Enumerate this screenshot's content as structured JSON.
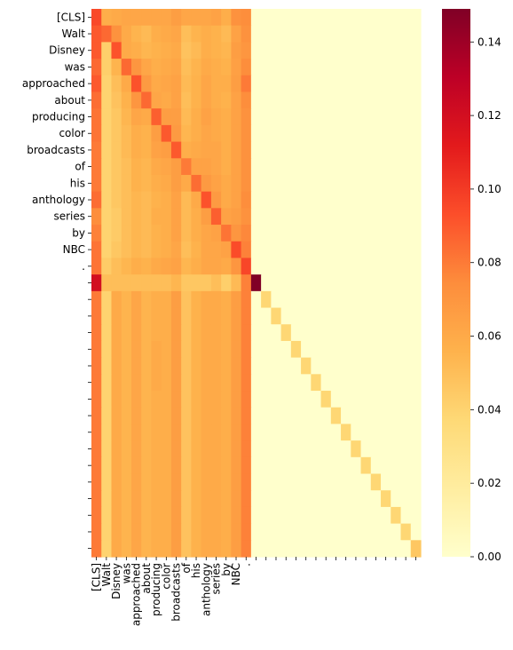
{
  "chart_data": {
    "type": "heatmap",
    "title": "",
    "xlabel": "",
    "ylabel": "",
    "row_labels": [
      "[CLS]",
      "Walt",
      "Disney",
      "was",
      "approached",
      "about",
      "producing",
      "color",
      "broadcasts",
      "of",
      "his",
      "anthology",
      "series",
      "by",
      "NBC",
      ".",
      "",
      "",
      "",
      "",
      "",
      "",
      "",
      "",
      "",
      "",
      "",
      "",
      "",
      "",
      "",
      "",
      ""
    ],
    "col_labels": [
      "[CLS]",
      "Walt",
      "Disney",
      "was",
      "approached",
      "about",
      "producing",
      "color",
      "broadcasts",
      "of",
      "his",
      "anthology",
      "series",
      "by",
      "NBC",
      ".",
      "",
      "",
      "",
      "",
      "",
      "",
      "",
      "",
      "",
      "",
      "",
      "",
      "",
      "",
      "",
      "",
      ""
    ],
    "value_range": [
      0.0,
      0.149
    ],
    "colormap": "YlOrRd",
    "colorbar_ticks": [
      "0.00",
      "0.02",
      "0.04",
      "0.06",
      "0.08",
      "0.10",
      "0.12",
      "0.14"
    ],
    "colorbar_tick_values": [
      0.0,
      0.02,
      0.04,
      0.06,
      0.08,
      0.1,
      0.12,
      0.14
    ],
    "values": [
      [
        0.095,
        0.058,
        0.06,
        0.062,
        0.062,
        0.062,
        0.062,
        0.062,
        0.066,
        0.062,
        0.062,
        0.062,
        0.064,
        0.058,
        0.072,
        0.074,
        0,
        0,
        0,
        0,
        0,
        0,
        0,
        0,
        0,
        0,
        0,
        0,
        0,
        0,
        0,
        0,
        0
      ],
      [
        0.09,
        0.085,
        0.072,
        0.06,
        0.055,
        0.052,
        0.058,
        0.06,
        0.062,
        0.05,
        0.055,
        0.058,
        0.056,
        0.052,
        0.064,
        0.072,
        0,
        0,
        0,
        0,
        0,
        0,
        0,
        0,
        0,
        0,
        0,
        0,
        0,
        0,
        0,
        0,
        0
      ],
      [
        0.09,
        0.042,
        0.092,
        0.06,
        0.058,
        0.054,
        0.056,
        0.058,
        0.06,
        0.048,
        0.052,
        0.058,
        0.056,
        0.054,
        0.066,
        0.07,
        0,
        0,
        0,
        0,
        0,
        0,
        0,
        0,
        0,
        0,
        0,
        0,
        0,
        0,
        0,
        0,
        0
      ],
      [
        0.085,
        0.042,
        0.055,
        0.085,
        0.07,
        0.062,
        0.058,
        0.06,
        0.062,
        0.05,
        0.055,
        0.06,
        0.058,
        0.056,
        0.065,
        0.074,
        0,
        0,
        0,
        0,
        0,
        0,
        0,
        0,
        0,
        0,
        0,
        0,
        0,
        0,
        0,
        0,
        0
      ],
      [
        0.09,
        0.04,
        0.05,
        0.06,
        0.092,
        0.068,
        0.06,
        0.062,
        0.064,
        0.052,
        0.056,
        0.062,
        0.058,
        0.058,
        0.066,
        0.08,
        0,
        0,
        0,
        0,
        0,
        0,
        0,
        0,
        0,
        0,
        0,
        0,
        0,
        0,
        0,
        0,
        0
      ],
      [
        0.084,
        0.04,
        0.048,
        0.056,
        0.07,
        0.085,
        0.062,
        0.06,
        0.064,
        0.05,
        0.056,
        0.062,
        0.058,
        0.056,
        0.064,
        0.074,
        0,
        0,
        0,
        0,
        0,
        0,
        0,
        0,
        0,
        0,
        0,
        0,
        0,
        0,
        0,
        0,
        0
      ],
      [
        0.082,
        0.04,
        0.046,
        0.054,
        0.062,
        0.06,
        0.088,
        0.066,
        0.066,
        0.052,
        0.058,
        0.064,
        0.06,
        0.058,
        0.064,
        0.072,
        0,
        0,
        0,
        0,
        0,
        0,
        0,
        0,
        0,
        0,
        0,
        0,
        0,
        0,
        0,
        0,
        0
      ],
      [
        0.082,
        0.04,
        0.046,
        0.052,
        0.058,
        0.056,
        0.066,
        0.09,
        0.068,
        0.054,
        0.058,
        0.062,
        0.06,
        0.058,
        0.064,
        0.072,
        0,
        0,
        0,
        0,
        0,
        0,
        0,
        0,
        0,
        0,
        0,
        0,
        0,
        0,
        0,
        0,
        0
      ],
      [
        0.08,
        0.04,
        0.046,
        0.052,
        0.058,
        0.056,
        0.064,
        0.066,
        0.09,
        0.058,
        0.06,
        0.062,
        0.062,
        0.058,
        0.064,
        0.072,
        0,
        0,
        0,
        0,
        0,
        0,
        0,
        0,
        0,
        0,
        0,
        0,
        0,
        0,
        0,
        0,
        0
      ],
      [
        0.08,
        0.04,
        0.046,
        0.05,
        0.056,
        0.054,
        0.06,
        0.062,
        0.066,
        0.08,
        0.064,
        0.064,
        0.062,
        0.058,
        0.064,
        0.072,
        0,
        0,
        0,
        0,
        0,
        0,
        0,
        0,
        0,
        0,
        0,
        0,
        0,
        0,
        0,
        0,
        0
      ],
      [
        0.08,
        0.04,
        0.046,
        0.05,
        0.056,
        0.054,
        0.058,
        0.06,
        0.066,
        0.06,
        0.084,
        0.068,
        0.064,
        0.06,
        0.064,
        0.072,
        0,
        0,
        0,
        0,
        0,
        0,
        0,
        0,
        0,
        0,
        0,
        0,
        0,
        0,
        0,
        0,
        0
      ],
      [
        0.084,
        0.04,
        0.046,
        0.05,
        0.054,
        0.052,
        0.056,
        0.058,
        0.064,
        0.052,
        0.06,
        0.092,
        0.068,
        0.06,
        0.064,
        0.074,
        0,
        0,
        0,
        0,
        0,
        0,
        0,
        0,
        0,
        0,
        0,
        0,
        0,
        0,
        0,
        0,
        0
      ],
      [
        0.074,
        0.04,
        0.044,
        0.05,
        0.054,
        0.052,
        0.058,
        0.058,
        0.064,
        0.052,
        0.058,
        0.066,
        0.088,
        0.064,
        0.066,
        0.072,
        0,
        0,
        0,
        0,
        0,
        0,
        0,
        0,
        0,
        0,
        0,
        0,
        0,
        0,
        0,
        0,
        0
      ],
      [
        0.078,
        0.04,
        0.044,
        0.05,
        0.054,
        0.052,
        0.056,
        0.058,
        0.064,
        0.052,
        0.058,
        0.062,
        0.064,
        0.082,
        0.07,
        0.076,
        0,
        0,
        0,
        0,
        0,
        0,
        0,
        0,
        0,
        0,
        0,
        0,
        0,
        0,
        0,
        0,
        0
      ],
      [
        0.082,
        0.04,
        0.046,
        0.05,
        0.054,
        0.052,
        0.056,
        0.058,
        0.062,
        0.05,
        0.056,
        0.062,
        0.062,
        0.064,
        0.094,
        0.078,
        0,
        0,
        0,
        0,
        0,
        0,
        0,
        0,
        0,
        0,
        0,
        0,
        0,
        0,
        0,
        0,
        0
      ],
      [
        0.082,
        0.044,
        0.05,
        0.054,
        0.058,
        0.056,
        0.06,
        0.062,
        0.064,
        0.054,
        0.058,
        0.062,
        0.062,
        0.06,
        0.07,
        0.096,
        0,
        0,
        0,
        0,
        0,
        0,
        0,
        0,
        0,
        0,
        0,
        0,
        0,
        0,
        0,
        0,
        0
      ],
      [
        0.12,
        0.05,
        0.05,
        0.05,
        0.05,
        0.05,
        0.05,
        0.05,
        0.054,
        0.046,
        0.046,
        0.046,
        0.05,
        0.042,
        0.052,
        0.078,
        0.149,
        0,
        0,
        0,
        0,
        0,
        0,
        0,
        0,
        0,
        0,
        0,
        0,
        0,
        0,
        0,
        0
      ],
      [
        0.08,
        0.04,
        0.06,
        0.055,
        0.062,
        0.055,
        0.058,
        0.058,
        0.066,
        0.048,
        0.056,
        0.06,
        0.06,
        0.058,
        0.066,
        0.078,
        0,
        0.038,
        0,
        0,
        0,
        0,
        0,
        0,
        0,
        0,
        0,
        0,
        0,
        0,
        0,
        0,
        0
      ],
      [
        0.08,
        0.04,
        0.06,
        0.055,
        0.062,
        0.055,
        0.058,
        0.058,
        0.066,
        0.048,
        0.056,
        0.06,
        0.06,
        0.058,
        0.066,
        0.078,
        0,
        0,
        0.038,
        0,
        0,
        0,
        0,
        0,
        0,
        0,
        0,
        0,
        0,
        0,
        0,
        0,
        0
      ],
      [
        0.08,
        0.04,
        0.06,
        0.055,
        0.062,
        0.055,
        0.058,
        0.058,
        0.066,
        0.048,
        0.056,
        0.06,
        0.06,
        0.058,
        0.066,
        0.078,
        0,
        0,
        0,
        0.038,
        0,
        0,
        0,
        0,
        0,
        0,
        0,
        0,
        0,
        0,
        0,
        0,
        0
      ],
      [
        0.08,
        0.04,
        0.06,
        0.055,
        0.062,
        0.055,
        0.06,
        0.058,
        0.066,
        0.048,
        0.056,
        0.06,
        0.06,
        0.058,
        0.066,
        0.078,
        0,
        0,
        0,
        0,
        0.038,
        0,
        0,
        0,
        0,
        0,
        0,
        0,
        0,
        0,
        0,
        0,
        0
      ],
      [
        0.08,
        0.04,
        0.06,
        0.055,
        0.062,
        0.055,
        0.06,
        0.058,
        0.066,
        0.048,
        0.056,
        0.06,
        0.06,
        0.058,
        0.066,
        0.078,
        0,
        0,
        0,
        0,
        0,
        0.038,
        0,
        0,
        0,
        0,
        0,
        0,
        0,
        0,
        0,
        0,
        0
      ],
      [
        0.08,
        0.04,
        0.06,
        0.055,
        0.062,
        0.055,
        0.06,
        0.058,
        0.066,
        0.048,
        0.056,
        0.06,
        0.06,
        0.058,
        0.066,
        0.078,
        0,
        0,
        0,
        0,
        0,
        0,
        0.038,
        0,
        0,
        0,
        0,
        0,
        0,
        0,
        0,
        0,
        0
      ],
      [
        0.08,
        0.04,
        0.06,
        0.055,
        0.062,
        0.055,
        0.058,
        0.058,
        0.066,
        0.048,
        0.056,
        0.06,
        0.06,
        0.058,
        0.066,
        0.078,
        0,
        0,
        0,
        0,
        0,
        0,
        0,
        0.038,
        0,
        0,
        0,
        0,
        0,
        0,
        0,
        0,
        0
      ],
      [
        0.08,
        0.04,
        0.06,
        0.055,
        0.062,
        0.055,
        0.058,
        0.058,
        0.066,
        0.048,
        0.056,
        0.06,
        0.06,
        0.058,
        0.066,
        0.078,
        0,
        0,
        0,
        0,
        0,
        0,
        0,
        0,
        0.038,
        0,
        0,
        0,
        0,
        0,
        0,
        0,
        0
      ],
      [
        0.08,
        0.04,
        0.06,
        0.055,
        0.062,
        0.055,
        0.058,
        0.058,
        0.066,
        0.048,
        0.056,
        0.06,
        0.06,
        0.058,
        0.066,
        0.078,
        0,
        0,
        0,
        0,
        0,
        0,
        0,
        0,
        0,
        0.038,
        0,
        0,
        0,
        0,
        0,
        0,
        0
      ],
      [
        0.08,
        0.04,
        0.06,
        0.055,
        0.062,
        0.055,
        0.058,
        0.058,
        0.066,
        0.048,
        0.056,
        0.06,
        0.06,
        0.058,
        0.066,
        0.078,
        0,
        0,
        0,
        0,
        0,
        0,
        0,
        0,
        0,
        0,
        0.038,
        0,
        0,
        0,
        0,
        0,
        0
      ],
      [
        0.08,
        0.04,
        0.06,
        0.055,
        0.062,
        0.055,
        0.058,
        0.058,
        0.066,
        0.048,
        0.056,
        0.06,
        0.06,
        0.058,
        0.066,
        0.078,
        0,
        0,
        0,
        0,
        0,
        0,
        0,
        0,
        0,
        0,
        0,
        0.038,
        0,
        0,
        0,
        0,
        0
      ],
      [
        0.08,
        0.04,
        0.06,
        0.055,
        0.062,
        0.055,
        0.058,
        0.058,
        0.066,
        0.048,
        0.056,
        0.06,
        0.06,
        0.058,
        0.066,
        0.078,
        0,
        0,
        0,
        0,
        0,
        0,
        0,
        0,
        0,
        0,
        0,
        0,
        0.038,
        0,
        0,
        0,
        0
      ],
      [
        0.08,
        0.04,
        0.06,
        0.055,
        0.062,
        0.055,
        0.058,
        0.058,
        0.066,
        0.048,
        0.056,
        0.06,
        0.06,
        0.058,
        0.066,
        0.078,
        0,
        0,
        0,
        0,
        0,
        0,
        0,
        0,
        0,
        0,
        0,
        0,
        0,
        0.038,
        0,
        0,
        0
      ],
      [
        0.08,
        0.04,
        0.06,
        0.055,
        0.062,
        0.055,
        0.058,
        0.058,
        0.066,
        0.048,
        0.056,
        0.06,
        0.06,
        0.058,
        0.066,
        0.078,
        0,
        0,
        0,
        0,
        0,
        0,
        0,
        0,
        0,
        0,
        0,
        0,
        0,
        0,
        0.038,
        0,
        0
      ],
      [
        0.08,
        0.04,
        0.06,
        0.055,
        0.062,
        0.055,
        0.058,
        0.058,
        0.066,
        0.048,
        0.056,
        0.06,
        0.06,
        0.058,
        0.066,
        0.078,
        0,
        0,
        0,
        0,
        0,
        0,
        0,
        0,
        0,
        0,
        0,
        0,
        0,
        0,
        0,
        0.038,
        0
      ],
      [
        0.08,
        0.04,
        0.06,
        0.055,
        0.062,
        0.055,
        0.058,
        0.058,
        0.066,
        0.048,
        0.056,
        0.06,
        0.06,
        0.058,
        0.066,
        0.078,
        0,
        0,
        0,
        0,
        0,
        0,
        0,
        0,
        0,
        0,
        0,
        0,
        0,
        0,
        0,
        0,
        0.046
      ]
    ]
  }
}
